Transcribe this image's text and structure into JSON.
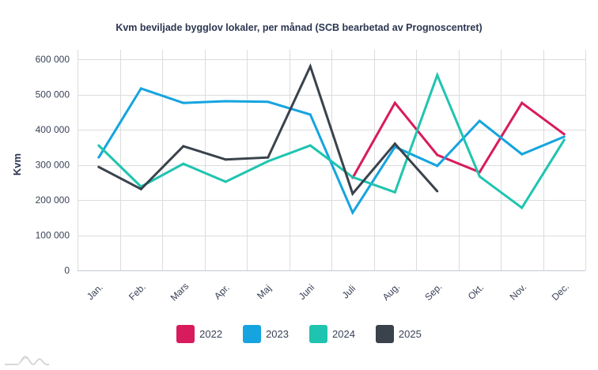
{
  "chart_data": {
    "type": "line",
    "title": "Kvm beviljade bygglov lokaler, per månad (SCB bearbetad av Prognoscentret)",
    "xlabel": "",
    "ylabel": "Kvm",
    "ylim": [
      0,
      600000
    ],
    "yticks": [
      0,
      100000,
      200000,
      300000,
      400000,
      500000,
      600000
    ],
    "ytick_labels": [
      "0",
      "100 000",
      "200 000",
      "300 000",
      "400 000",
      "500 000",
      "600 000"
    ],
    "grid": true,
    "legend_position": "bottom",
    "categories": [
      "Jan.",
      "Feb.",
      "Mars",
      "Apr.",
      "Maj",
      "Juni",
      "Juli",
      "Aug.",
      "Sep.",
      "Okt.",
      "Nov.",
      "Dec."
    ],
    "series": [
      {
        "name": "2022",
        "color": "#d81b5c",
        "values": [
          null,
          null,
          null,
          null,
          null,
          null,
          263000,
          476000,
          328000,
          279000,
          476000,
          387000
        ]
      },
      {
        "name": "2023",
        "color": "#15a4df",
        "values": [
          321000,
          517000,
          476000,
          481000,
          479000,
          443000,
          164000,
          351000,
          297000,
          425000,
          330000,
          380000
        ]
      },
      {
        "name": "2024",
        "color": "#1fc4b0",
        "values": [
          355000,
          238000,
          303000,
          252000,
          310000,
          355000,
          265000,
          222000,
          555000,
          267000,
          178000,
          371000
        ]
      },
      {
        "name": "2025",
        "color": "#3a424c",
        "values": [
          294000,
          231000,
          353000,
          315000,
          321000,
          580000,
          218000,
          360000,
          225000,
          null,
          null,
          null
        ]
      }
    ]
  },
  "legend": {
    "items": [
      {
        "label": "2022",
        "color": "#d81b5c"
      },
      {
        "label": "2023",
        "color": "#15a4df"
      },
      {
        "label": "2024",
        "color": "#1fc4b0"
      },
      {
        "label": "2025",
        "color": "#3a424c"
      }
    ]
  },
  "logo": {
    "icon": "mountain-logo-icon"
  }
}
